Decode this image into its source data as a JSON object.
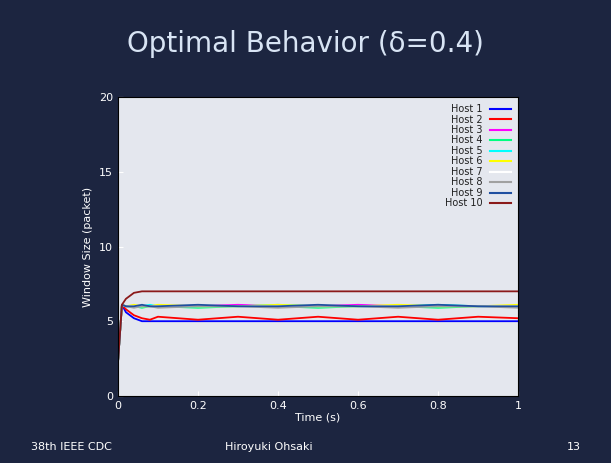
{
  "chart_data": {
    "type": "line",
    "title": "Optimal Behavior (δ=0.4)",
    "x_label": "Time (s)",
    "y_label": "Window Size (packet)",
    "x": [
      0,
      0.01,
      0.02,
      0.04,
      0.06,
      0.08,
      0.1,
      0.2,
      0.3,
      0.4,
      0.5,
      0.6,
      0.7,
      0.8,
      0.9,
      1.0
    ],
    "series": [
      {
        "name": "Host 1",
        "color": "#0000ff",
        "values": [
          2.2,
          6.1,
          5.6,
          5.2,
          5.0,
          5.0,
          5.0,
          5.0,
          5.0,
          5.0,
          5.0,
          5.0,
          5.0,
          5.0,
          5.0,
          5.0
        ]
      },
      {
        "name": "Host 2",
        "color": "#ff0000",
        "values": [
          2.2,
          6.1,
          5.8,
          5.4,
          5.2,
          5.1,
          5.3,
          5.1,
          5.3,
          5.1,
          5.3,
          5.1,
          5.3,
          5.1,
          5.3,
          5.2
        ]
      },
      {
        "name": "Host 3",
        "color": "#ff00ff",
        "values": [
          2.2,
          6.1,
          6.0,
          6.0,
          6.0,
          6.0,
          6.0,
          6.0,
          6.1,
          6.0,
          6.0,
          6.1,
          6.0,
          6.0,
          6.0,
          6.0
        ]
      },
      {
        "name": "Host 4",
        "color": "#00ff80",
        "values": [
          2.2,
          6.1,
          6.0,
          6.0,
          5.9,
          6.0,
          6.0,
          5.9,
          6.0,
          6.0,
          5.9,
          6.0,
          6.0,
          5.9,
          6.0,
          6.0
        ]
      },
      {
        "name": "Host 5",
        "color": "#00ffff",
        "values": [
          2.2,
          6.1,
          6.0,
          6.0,
          6.0,
          6.1,
          6.0,
          6.0,
          6.0,
          6.1,
          6.0,
          6.0,
          6.0,
          6.1,
          6.0,
          6.0
        ]
      },
      {
        "name": "Host 6",
        "color": "#ffff00",
        "values": [
          2.2,
          6.1,
          6.0,
          6.1,
          6.0,
          6.0,
          6.1,
          6.0,
          6.0,
          6.1,
          6.0,
          6.0,
          6.1,
          6.0,
          6.0,
          6.1
        ]
      },
      {
        "name": "Host 7",
        "color": "#ffffff",
        "values": [
          2.2,
          6.1,
          6.0,
          6.0,
          6.0,
          6.0,
          6.0,
          6.0,
          6.0,
          6.0,
          6.0,
          6.0,
          6.0,
          6.0,
          6.0,
          6.0
        ]
      },
      {
        "name": "Host 8",
        "color": "#a0a0a0",
        "values": [
          2.2,
          6.1,
          6.0,
          5.9,
          6.0,
          6.0,
          5.9,
          6.0,
          6.0,
          5.9,
          6.0,
          6.0,
          5.9,
          6.0,
          6.0,
          5.9
        ]
      },
      {
        "name": "Host 9",
        "color": "#1f4fa0",
        "values": [
          2.2,
          6.1,
          6.0,
          6.0,
          6.1,
          6.0,
          6.0,
          6.1,
          6.0,
          6.0,
          6.1,
          6.0,
          6.0,
          6.1,
          6.0,
          6.0
        ]
      },
      {
        "name": "Host 10",
        "color": "#8b1a1a",
        "values": [
          2.2,
          6.1,
          6.5,
          6.9,
          7.0,
          7.0,
          7.0,
          7.0,
          7.0,
          7.0,
          7.0,
          7.0,
          7.0,
          7.0,
          7.0,
          7.0
        ]
      }
    ],
    "xlim": [
      0,
      1
    ],
    "xticks": [
      0,
      0.2,
      0.4,
      0.6,
      0.8,
      1
    ],
    "ylim": [
      0,
      20
    ],
    "yticks": [
      0,
      5,
      10,
      15,
      20
    ],
    "grid": false,
    "legend": "upper right"
  },
  "footer": {
    "venue": "38th IEEE CDC",
    "author": "Hiroyuki Ohsaki",
    "page": 13
  }
}
